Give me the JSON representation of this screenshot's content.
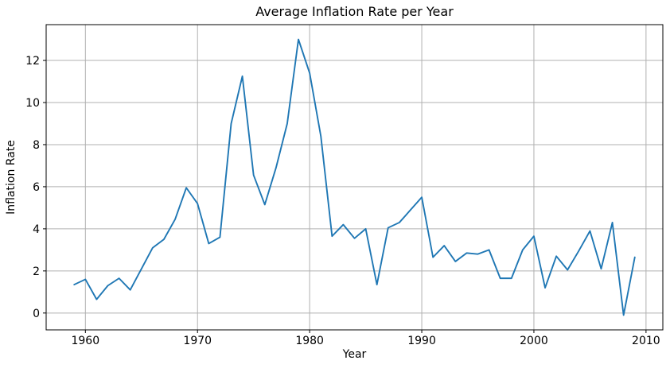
{
  "chart_data": {
    "type": "line",
    "title": "Average Inflation Rate per Year",
    "xlabel": "Year",
    "ylabel": "Inflation Rate",
    "x": [
      1959,
      1960,
      1961,
      1962,
      1963,
      1964,
      1965,
      1966,
      1967,
      1968,
      1969,
      1970,
      1971,
      1972,
      1973,
      1974,
      1975,
      1976,
      1977,
      1978,
      1979,
      1980,
      1981,
      1982,
      1983,
      1984,
      1985,
      1986,
      1987,
      1988,
      1989,
      1990,
      1991,
      1992,
      1993,
      1994,
      1995,
      1996,
      1997,
      1998,
      1999,
      2000,
      2001,
      2002,
      2003,
      2004,
      2005,
      2006,
      2007,
      2008,
      2009
    ],
    "y": [
      1.35,
      1.6,
      0.65,
      1.3,
      1.65,
      1.1,
      2.1,
      3.1,
      3.5,
      4.45,
      5.95,
      5.2,
      3.3,
      3.6,
      9.0,
      11.25,
      6.55,
      5.15,
      6.9,
      9.0,
      13.0,
      11.4,
      8.4,
      3.65,
      4.2,
      3.55,
      4.0,
      1.35,
      4.05,
      4.3,
      4.9,
      5.5,
      2.65,
      3.2,
      2.45,
      2.85,
      2.8,
      3.0,
      1.65,
      1.65,
      3.0,
      3.65,
      1.2,
      2.7,
      2.05,
      2.95,
      3.9,
      2.1,
      4.3,
      -0.1,
      2.65
    ],
    "xlim": [
      1956.5,
      2011.5
    ],
    "ylim": [
      -0.8,
      13.7
    ],
    "xticks": [
      1960,
      1970,
      1980,
      1990,
      2000,
      2010
    ],
    "yticks": [
      0,
      2,
      4,
      6,
      8,
      10,
      12
    ],
    "grid": true,
    "legend": "none",
    "line_color": "#1f77b4",
    "grid_color": "#b0b0b0",
    "axis_color": "#000000",
    "background": "#ffffff"
  }
}
